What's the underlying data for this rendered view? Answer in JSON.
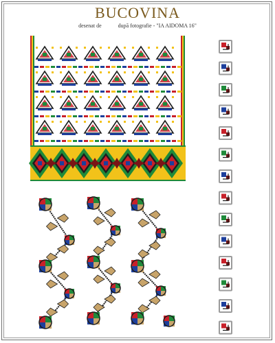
{
  "header": {
    "title": "BUCOVINA",
    "subtitle_left": "desenat de",
    "subtitle_right": "după fotografie - \"IA AIDOMA 16\""
  },
  "palette": {
    "red": "#c8202a",
    "dark_red": "#7a1416",
    "black": "#1d1d1d",
    "yellow": "#f2c21a",
    "green": "#1f8a3a",
    "blue": "#1d3f9c",
    "tan": "#c8a46a",
    "grey": "#9b9b9b",
    "frame": "#6f6f6f"
  },
  "icons": {
    "motif_left_column": "embroidered-leaf-motif",
    "border_band": "diamond-star-band",
    "lower_pattern": "flower-branch-motif",
    "right_column": "spiral-square-motif"
  }
}
